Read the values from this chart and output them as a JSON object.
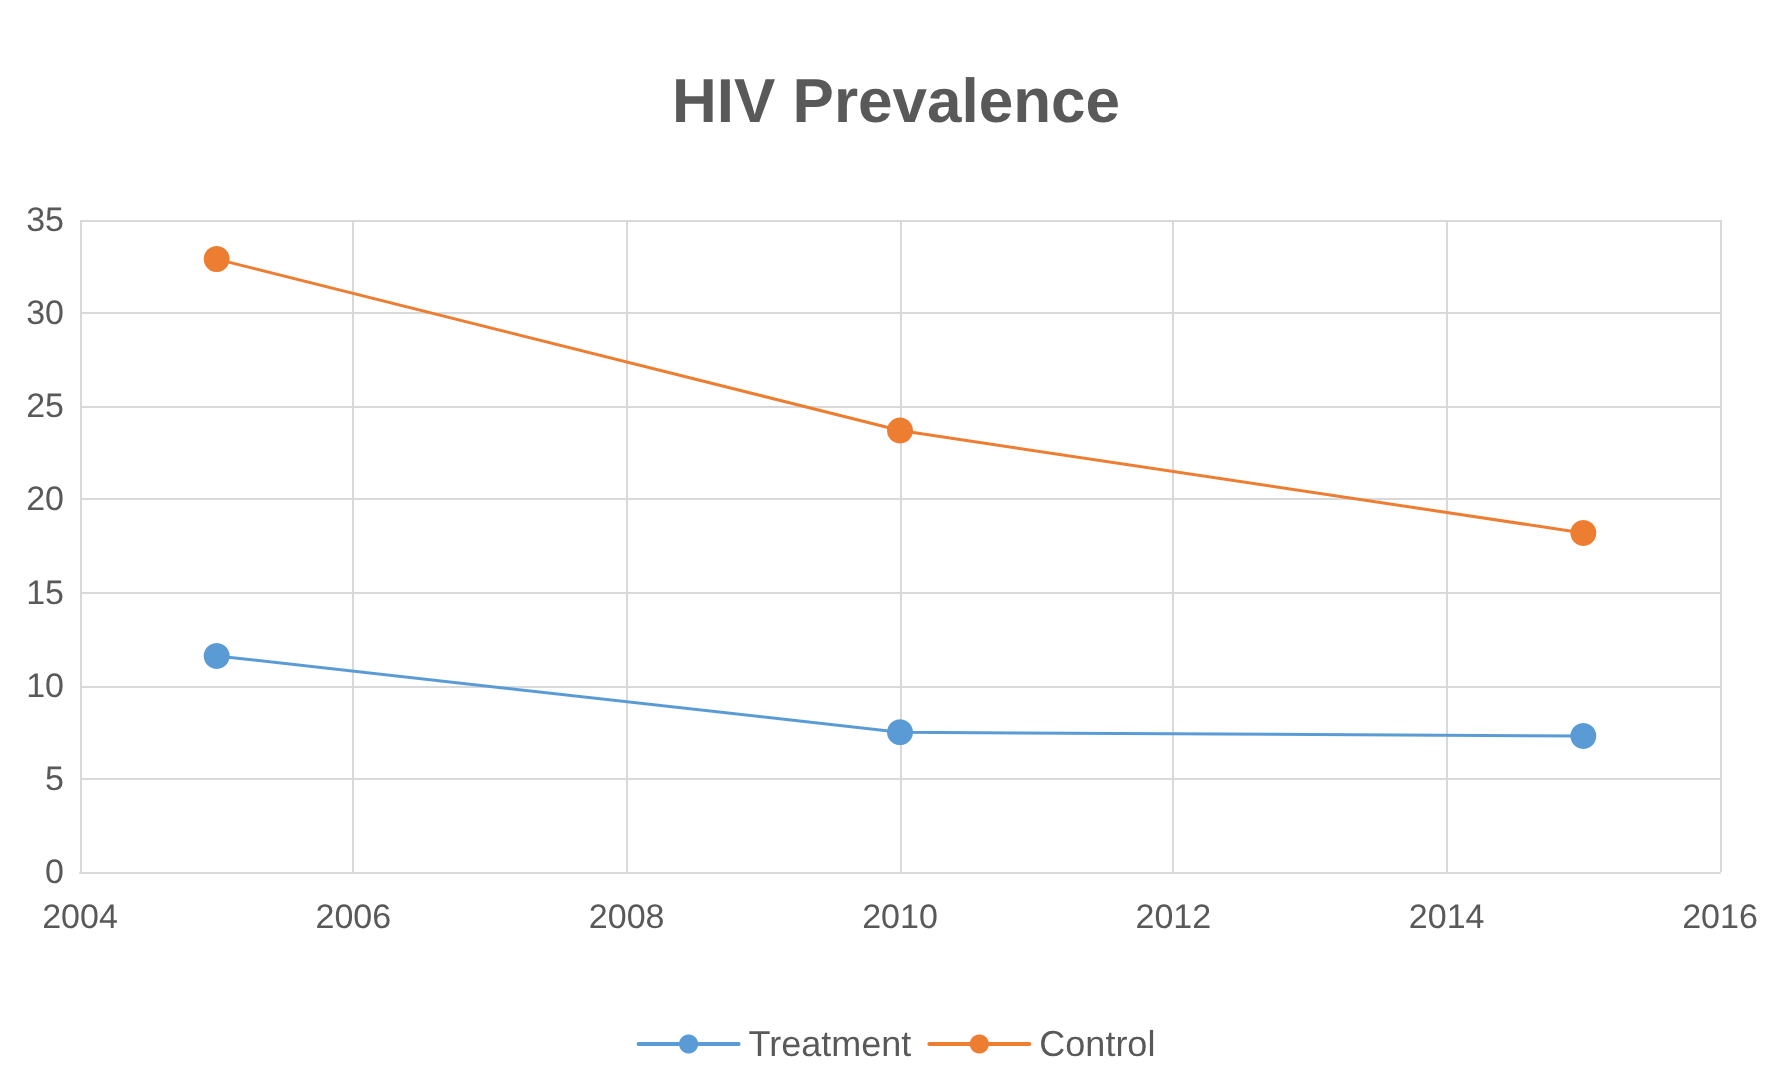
{
  "chart_data": {
    "type": "line",
    "title": "HIV Prevalence",
    "x": [
      2005,
      2010,
      2015
    ],
    "series": [
      {
        "name": "Treatment",
        "color": "#5b9bd5",
        "values": [
          11.6,
          7.5,
          7.3
        ]
      },
      {
        "name": "Control",
        "color": "#ed7d31",
        "values": [
          32.9,
          23.7,
          18.2
        ]
      }
    ],
    "xlim": [
      2004,
      2016
    ],
    "xticks": [
      2004,
      2006,
      2008,
      2010,
      2012,
      2014,
      2016
    ],
    "ylim": [
      0,
      35
    ],
    "yticks": [
      0,
      5,
      10,
      15,
      20,
      25,
      30,
      35
    ],
    "grid": true,
    "legend": "bottom",
    "marker": "circle",
    "line_style": "solid"
  }
}
